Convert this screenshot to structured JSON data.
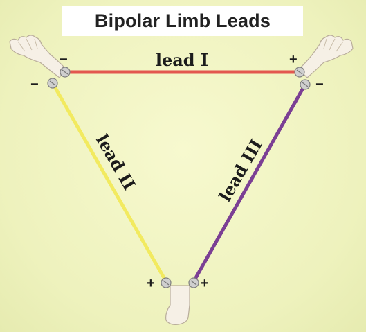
{
  "title": "Bipolar Limb Leads",
  "leads": [
    {
      "label": "lead I",
      "color": "#e3574f"
    },
    {
      "label": "lead II",
      "color": "#f2ea5f"
    },
    {
      "label": "lead III",
      "color": "#7b3f94"
    }
  ],
  "signs": {
    "right_arm_lead1": "−",
    "right_arm_lead2": "−",
    "left_arm_lead1": "+",
    "left_arm_lead3": "−",
    "left_leg_lead2": "+",
    "left_leg_lead3": "+"
  },
  "icons": [
    "right-hand-icon",
    "left-hand-icon",
    "foot-icon",
    "electrode-icon"
  ],
  "colors": {
    "background": "#eef2bd",
    "title_box": "#ffffff",
    "skin": "#f6f0e6",
    "electrode": "#c9c9c9"
  }
}
